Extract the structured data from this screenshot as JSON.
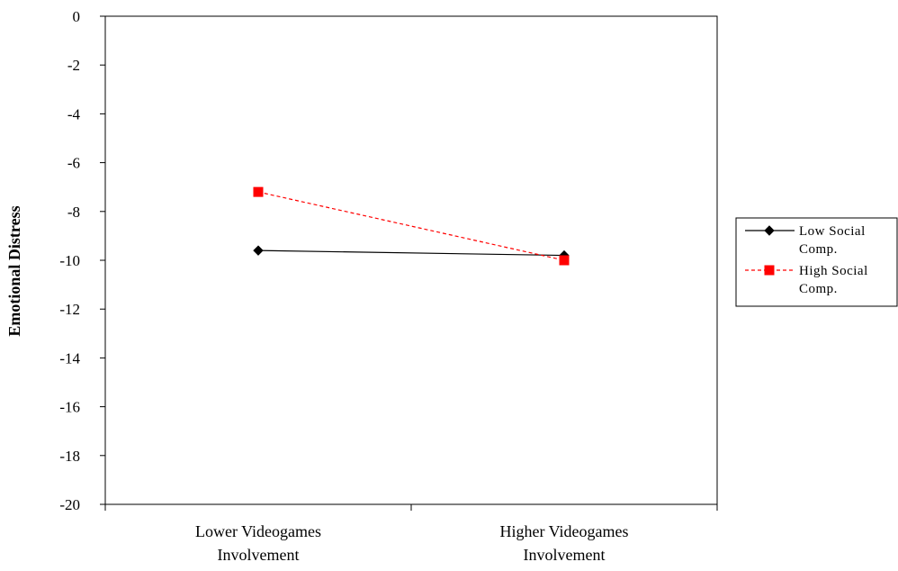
{
  "chart_data": {
    "type": "line",
    "title": "",
    "ylabel": "Emotional Distress",
    "xlabel": "",
    "categories": [
      [
        "Lower Videogames",
        "Involvement"
      ],
      [
        "Higher Videogames",
        "Involvement"
      ]
    ],
    "ylim": [
      -20,
      0
    ],
    "yticks": [
      0,
      -2,
      -4,
      -6,
      -8,
      -10,
      -12,
      -14,
      -16,
      -18,
      -20
    ],
    "grid": false,
    "legend_position": "right",
    "series": [
      {
        "name": [
          "Low Social",
          "Comp."
        ],
        "values": [
          -9.6,
          -9.8
        ],
        "color": "#000000",
        "marker": "diamond",
        "line_style": "solid"
      },
      {
        "name": [
          "High Social",
          "Comp."
        ],
        "values": [
          -7.2,
          -10.0
        ],
        "color": "#ff0000",
        "marker": "square",
        "line_style": "dashed"
      }
    ]
  }
}
